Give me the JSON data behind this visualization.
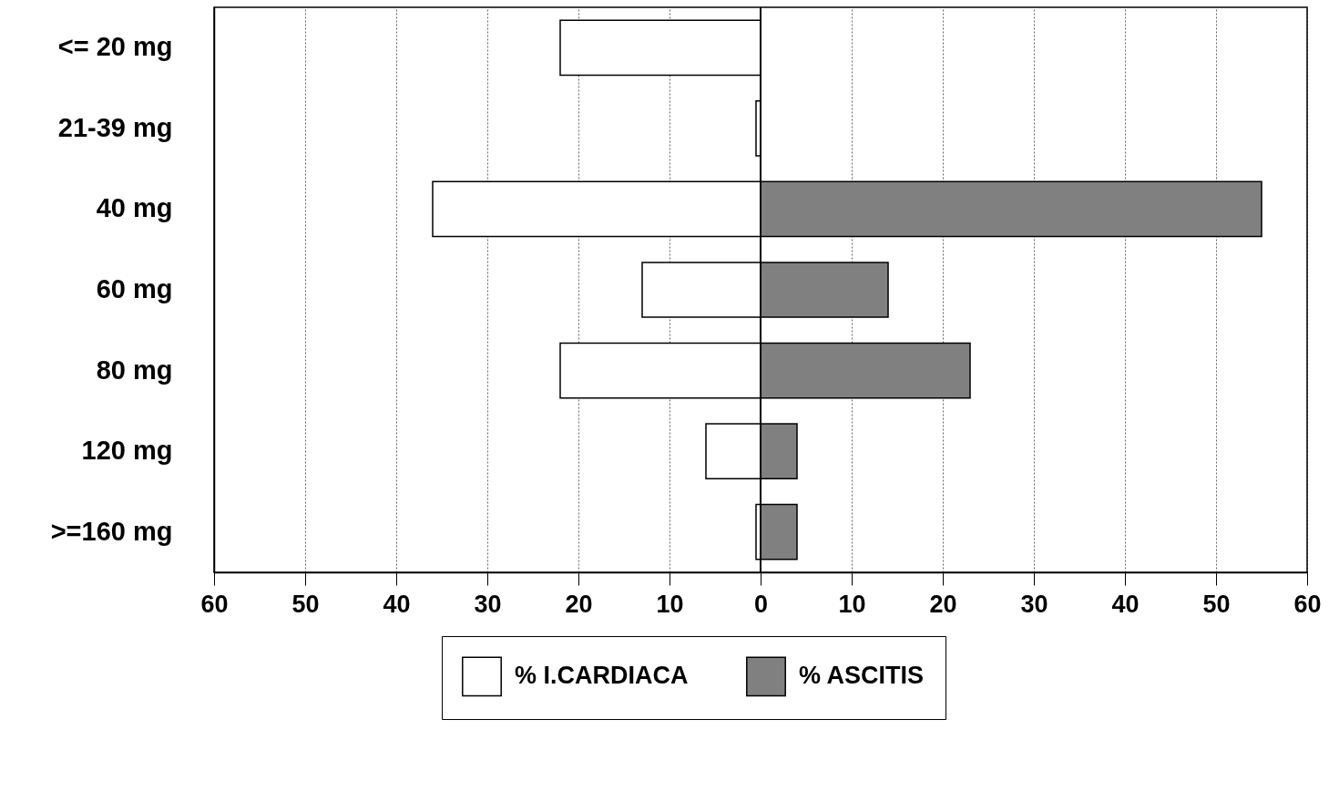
{
  "chart_data": {
    "type": "bar",
    "orientation": "horizontal",
    "categories": [
      "<= 20 mg",
      "21-39 mg",
      "40 mg",
      "60 mg",
      "80 mg",
      "120 mg",
      ">=160 mg"
    ],
    "series": [
      {
        "name": "% I.CARDIACA",
        "color": "#ffffff",
        "values": [
          -22,
          -0.5,
          -36,
          -13,
          -22,
          -6,
          -0.5
        ]
      },
      {
        "name": "% ASCITIS",
        "color": "#808080",
        "values": [
          null,
          null,
          55,
          14,
          23,
          4,
          4
        ]
      }
    ],
    "xlim": [
      -60,
      60
    ],
    "xticks": [
      {
        "value": -60,
        "label": "60"
      },
      {
        "value": -50,
        "label": "50"
      },
      {
        "value": -40,
        "label": "40"
      },
      {
        "value": -30,
        "label": "30"
      },
      {
        "value": -20,
        "label": "20"
      },
      {
        "value": -10,
        "label": "10"
      },
      0,
      10,
      20,
      30,
      40,
      50,
      60
    ],
    "stacked": true,
    "ref_lines": [
      {
        "axis": "x",
        "value": 0
      }
    ],
    "grid": "x",
    "legend": "bottom"
  }
}
